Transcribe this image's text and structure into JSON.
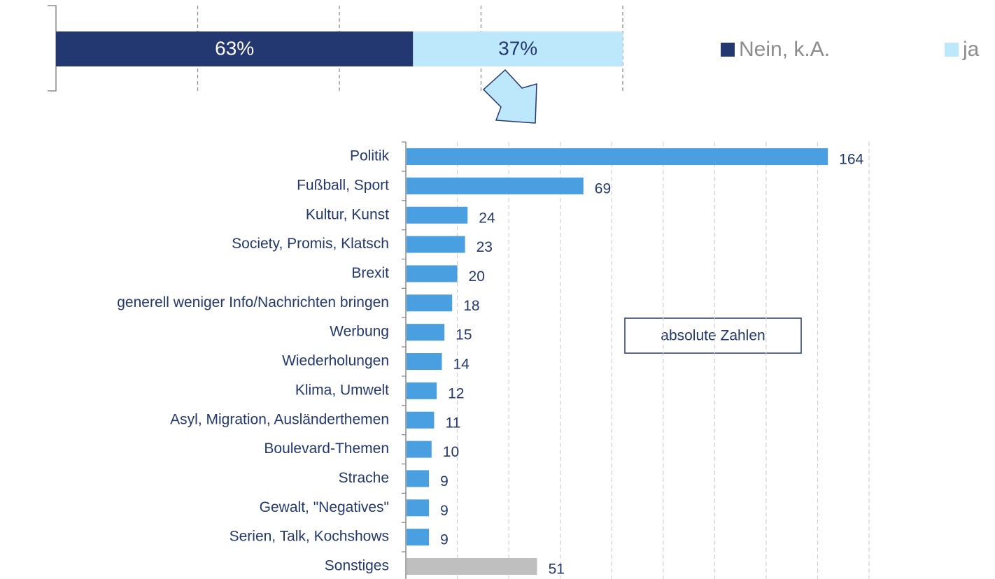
{
  "chart_data": [
    {
      "type": "stacked_bar",
      "series": [
        {
          "name": "Nein, k.A.",
          "color": "#233870",
          "label_color": "#ffffff",
          "values": [
            63
          ],
          "value_labels": [
            "63%"
          ]
        },
        {
          "name": "ja",
          "color": "#bde8fb",
          "label_color": "#233870",
          "values": [
            37
          ],
          "value_labels": [
            "37%"
          ]
        }
      ],
      "xlim": [
        0,
        100
      ],
      "xticks": [
        0,
        25,
        50,
        75,
        100
      ],
      "grid": true,
      "legend": "right"
    },
    {
      "type": "bar",
      "orientation": "horizontal",
      "categories": [
        "Politik",
        "Fußball, Sport",
        "Kultur, Kunst",
        "Society, Promis, Klatsch",
        "Brexit",
        "generell weniger Info/Nachrichten bringen",
        "Werbung",
        "Wiederholungen",
        "Klima, Umwelt",
        "Asyl, Migration, Ausländerthemen",
        "Boulevard-Themen",
        "Strache",
        "Gewalt, \"Negatives\"",
        "Serien, Talk, Kochshows",
        "Sonstiges"
      ],
      "values": [
        164,
        69,
        24,
        23,
        20,
        18,
        15,
        14,
        12,
        11,
        10,
        9,
        9,
        9,
        51
      ],
      "colors": [
        "#4a9fe0",
        "#4a9fe0",
        "#4a9fe0",
        "#4a9fe0",
        "#4a9fe0",
        "#4a9fe0",
        "#4a9fe0",
        "#4a9fe0",
        "#4a9fe0",
        "#4a9fe0",
        "#4a9fe0",
        "#4a9fe0",
        "#4a9fe0",
        "#4a9fe0",
        "#bfbfbf"
      ],
      "xlim": [
        0,
        180
      ],
      "xticks": [
        0,
        20,
        40,
        60,
        80,
        100,
        120,
        140,
        160,
        180
      ],
      "grid": true,
      "annotation": "absolute Zahlen"
    }
  ]
}
